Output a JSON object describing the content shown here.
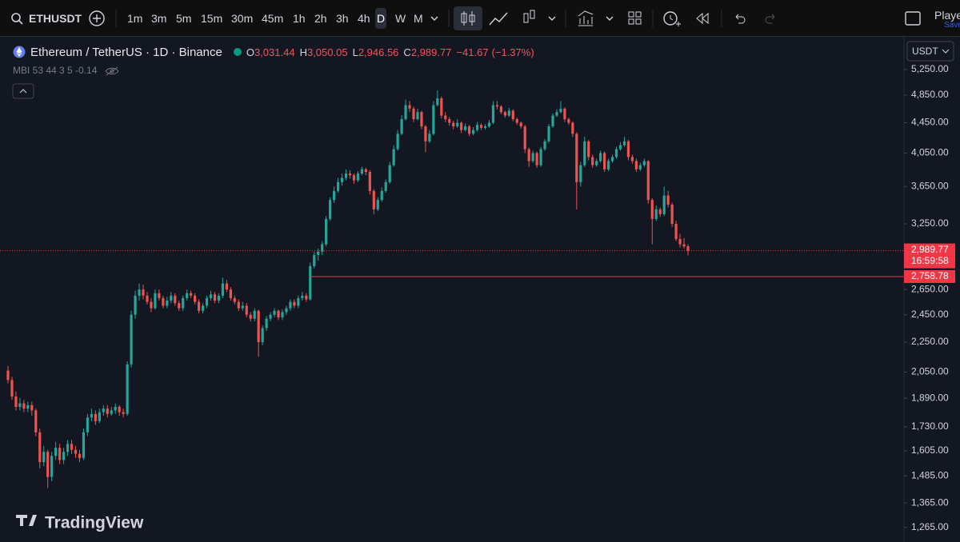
{
  "toolbar": {
    "symbol": "ETHUSDT",
    "intervals": [
      "1m",
      "3m",
      "5m",
      "15m",
      "30m",
      "45m",
      "1h",
      "2h",
      "3h",
      "4h",
      "D",
      "W",
      "M"
    ],
    "active_interval": "D",
    "account": "Playe",
    "save": "Save"
  },
  "watermark": "TradingView",
  "chart_data": {
    "type": "candlestick",
    "title": "Ethereum / TetherUS · 1D · Binance",
    "legend": [
      {
        "key": "O",
        "value": 3031.44,
        "label": "3,031.44"
      },
      {
        "key": "H",
        "value": 3050.05,
        "label": "3,050.05"
      },
      {
        "key": "L",
        "value": 2946.56,
        "label": "2,946.56"
      },
      {
        "key": "C",
        "value": 2989.77,
        "label": "2,989.77"
      }
    ],
    "change": {
      "value": -41.67,
      "label": "−41.67"
    },
    "change_percent": {
      "value": -1.37,
      "label": "(−1.37%)"
    },
    "indicator": "MBI 53 44 3 5 -0.14",
    "currency": "USDT",
    "log_scale": true,
    "ylim": [
      1209,
      5813
    ],
    "yticks": [
      {
        "value": 5250,
        "label": "5,250.00"
      },
      {
        "value": 4850,
        "label": "4,850.00"
      },
      {
        "value": 4450,
        "label": "4,450.00"
      },
      {
        "value": 4050,
        "label": "4,050.00"
      },
      {
        "value": 3650,
        "label": "3,650.00"
      },
      {
        "value": 3250,
        "label": "3,250.00"
      },
      {
        "value": 2650,
        "label": "2,650.00"
      },
      {
        "value": 2450,
        "label": "2,450.00"
      },
      {
        "value": 2250,
        "label": "2,250.00"
      },
      {
        "value": 2050,
        "label": "2,050.00"
      },
      {
        "value": 1890,
        "label": "1,890.00"
      },
      {
        "value": 1730,
        "label": "1,730.00"
      },
      {
        "value": 1605,
        "label": "1,605.00"
      },
      {
        "value": 1485,
        "label": "1,485.00"
      },
      {
        "value": 1365,
        "label": "1,365.00"
      },
      {
        "value": 1265,
        "label": "1,265.00"
      }
    ],
    "price_line": {
      "value": 2989.77,
      "label": "2,989.77",
      "countdown": "16:59:58"
    },
    "horizontal_line": {
      "value": 2758.78,
      "label": "2,758.78"
    },
    "up_color": "#26a69a",
    "down_color": "#ef5350",
    "candles": [
      [
        2060,
        2090,
        1980,
        2000
      ],
      [
        2000,
        2020,
        1880,
        1900
      ],
      [
        1900,
        1930,
        1820,
        1840
      ],
      [
        1840,
        1890,
        1820,
        1860
      ],
      [
        1860,
        1880,
        1810,
        1830
      ],
      [
        1830,
        1870,
        1810,
        1850
      ],
      [
        1850,
        1870,
        1790,
        1820
      ],
      [
        1820,
        1830,
        1680,
        1700
      ],
      [
        1700,
        1720,
        1520,
        1550
      ],
      [
        1550,
        1630,
        1530,
        1600
      ],
      [
        1600,
        1610,
        1430,
        1480
      ],
      [
        1480,
        1600,
        1460,
        1580
      ],
      [
        1580,
        1650,
        1560,
        1620
      ],
      [
        1620,
        1640,
        1540,
        1560
      ],
      [
        1560,
        1620,
        1540,
        1600
      ],
      [
        1600,
        1660,
        1580,
        1640
      ],
      [
        1640,
        1660,
        1590,
        1610
      ],
      [
        1610,
        1630,
        1570,
        1590
      ],
      [
        1590,
        1610,
        1550,
        1570
      ],
      [
        1570,
        1720,
        1560,
        1700
      ],
      [
        1700,
        1800,
        1680,
        1780
      ],
      [
        1780,
        1830,
        1760,
        1800
      ],
      [
        1800,
        1820,
        1740,
        1760
      ],
      [
        1760,
        1830,
        1750,
        1810
      ],
      [
        1810,
        1850,
        1790,
        1830
      ],
      [
        1830,
        1850,
        1780,
        1800
      ],
      [
        1800,
        1840,
        1790,
        1820
      ],
      [
        1820,
        1860,
        1800,
        1840
      ],
      [
        1840,
        1850,
        1790,
        1810
      ],
      [
        1810,
        1830,
        1780,
        1800
      ],
      [
        1800,
        2120,
        1790,
        2100
      ],
      [
        2100,
        2480,
        2080,
        2450
      ],
      [
        2450,
        2640,
        2420,
        2600
      ],
      [
        2600,
        2700,
        2560,
        2650
      ],
      [
        2650,
        2690,
        2570,
        2600
      ],
      [
        2600,
        2630,
        2530,
        2550
      ],
      [
        2550,
        2580,
        2470,
        2500
      ],
      [
        2500,
        2650,
        2490,
        2620
      ],
      [
        2620,
        2650,
        2560,
        2580
      ],
      [
        2580,
        2600,
        2500,
        2520
      ],
      [
        2520,
        2590,
        2500,
        2560
      ],
      [
        2560,
        2630,
        2540,
        2600
      ],
      [
        2600,
        2620,
        2520,
        2540
      ],
      [
        2540,
        2560,
        2480,
        2500
      ],
      [
        2500,
        2600,
        2480,
        2580
      ],
      [
        2580,
        2650,
        2560,
        2620
      ],
      [
        2620,
        2640,
        2580,
        2600
      ],
      [
        2600,
        2620,
        2530,
        2550
      ],
      [
        2550,
        2570,
        2460,
        2480
      ],
      [
        2480,
        2540,
        2460,
        2520
      ],
      [
        2520,
        2600,
        2500,
        2580
      ],
      [
        2580,
        2640,
        2560,
        2610
      ],
      [
        2610,
        2630,
        2540,
        2560
      ],
      [
        2560,
        2620,
        2540,
        2600
      ],
      [
        2600,
        2750,
        2580,
        2700
      ],
      [
        2700,
        2730,
        2630,
        2650
      ],
      [
        2650,
        2670,
        2560,
        2580
      ],
      [
        2580,
        2600,
        2530,
        2550
      ],
      [
        2550,
        2570,
        2480,
        2500
      ],
      [
        2500,
        2550,
        2480,
        2520
      ],
      [
        2520,
        2540,
        2430,
        2450
      ],
      [
        2450,
        2470,
        2400,
        2420
      ],
      [
        2420,
        2500,
        2400,
        2480
      ],
      [
        2480,
        2490,
        2150,
        2250
      ],
      [
        2250,
        2370,
        2230,
        2350
      ],
      [
        2350,
        2440,
        2330,
        2420
      ],
      [
        2420,
        2470,
        2400,
        2450
      ],
      [
        2450,
        2500,
        2430,
        2480
      ],
      [
        2480,
        2490,
        2410,
        2430
      ],
      [
        2430,
        2490,
        2410,
        2470
      ],
      [
        2470,
        2520,
        2450,
        2500
      ],
      [
        2500,
        2570,
        2480,
        2550
      ],
      [
        2550,
        2570,
        2500,
        2520
      ],
      [
        2520,
        2600,
        2500,
        2580
      ],
      [
        2580,
        2630,
        2560,
        2600
      ],
      [
        2600,
        2620,
        2550,
        2570
      ],
      [
        2570,
        2880,
        2560,
        2850
      ],
      [
        2850,
        2980,
        2830,
        2950
      ],
      [
        2950,
        3010,
        2900,
        2980
      ],
      [
        2980,
        3080,
        2950,
        3050
      ],
      [
        3050,
        3330,
        3030,
        3300
      ],
      [
        3300,
        3530,
        3280,
        3500
      ],
      [
        3500,
        3650,
        3470,
        3600
      ],
      [
        3600,
        3750,
        3580,
        3700
      ],
      [
        3700,
        3800,
        3660,
        3750
      ],
      [
        3750,
        3850,
        3720,
        3800
      ],
      [
        3800,
        3840,
        3740,
        3780
      ],
      [
        3780,
        3800,
        3680,
        3720
      ],
      [
        3720,
        3830,
        3700,
        3800
      ],
      [
        3800,
        3880,
        3780,
        3850
      ],
      [
        3850,
        3870,
        3780,
        3820
      ],
      [
        3820,
        3840,
        3560,
        3600
      ],
      [
        3600,
        3620,
        3350,
        3400
      ],
      [
        3400,
        3530,
        3380,
        3500
      ],
      [
        3500,
        3640,
        3480,
        3600
      ],
      [
        3600,
        3730,
        3580,
        3700
      ],
      [
        3700,
        3940,
        3680,
        3900
      ],
      [
        3900,
        4150,
        3880,
        4100
      ],
      [
        4100,
        4350,
        4080,
        4300
      ],
      [
        4300,
        4560,
        4280,
        4500
      ],
      [
        4500,
        4780,
        4480,
        4700
      ],
      [
        4700,
        4760,
        4600,
        4650
      ],
      [
        4650,
        4680,
        4460,
        4500
      ],
      [
        4500,
        4650,
        4480,
        4600
      ],
      [
        4600,
        4620,
        4360,
        4400
      ],
      [
        4400,
        4420,
        4060,
        4200
      ],
      [
        4200,
        4350,
        4180,
        4300
      ],
      [
        4300,
        4760,
        4280,
        4700
      ],
      [
        4700,
        4920,
        4680,
        4800
      ],
      [
        4800,
        4830,
        4510,
        4550
      ],
      [
        4550,
        4600,
        4460,
        4500
      ],
      [
        4500,
        4530,
        4410,
        4450
      ],
      [
        4450,
        4480,
        4360,
        4400
      ],
      [
        4400,
        4500,
        4380,
        4450
      ],
      [
        4450,
        4470,
        4310,
        4350
      ],
      [
        4350,
        4440,
        4330,
        4400
      ],
      [
        4400,
        4420,
        4270,
        4300
      ],
      [
        4300,
        4390,
        4280,
        4350
      ],
      [
        4350,
        4460,
        4330,
        4420
      ],
      [
        4420,
        4440,
        4350,
        4380
      ],
      [
        4380,
        4430,
        4360,
        4400
      ],
      [
        4400,
        4490,
        4380,
        4450
      ],
      [
        4450,
        4760,
        4430,
        4700
      ],
      [
        4700,
        4760,
        4640,
        4680
      ],
      [
        4680,
        4700,
        4570,
        4600
      ],
      [
        4600,
        4620,
        4520,
        4550
      ],
      [
        4550,
        4660,
        4530,
        4620
      ],
      [
        4620,
        4640,
        4470,
        4500
      ],
      [
        4500,
        4520,
        4420,
        4450
      ],
      [
        4450,
        4470,
        4370,
        4400
      ],
      [
        4400,
        4420,
        4050,
        4100
      ],
      [
        4100,
        4120,
        3880,
        3950
      ],
      [
        3950,
        4080,
        3930,
        4050
      ],
      [
        4050,
        4070,
        3870,
        3900
      ],
      [
        3900,
        4130,
        3880,
        4100
      ],
      [
        4100,
        4230,
        4080,
        4200
      ],
      [
        4200,
        4430,
        4180,
        4400
      ],
      [
        4400,
        4580,
        4380,
        4550
      ],
      [
        4550,
        4640,
        4530,
        4600
      ],
      [
        4600,
        4760,
        4580,
        4650
      ],
      [
        4650,
        4670,
        4460,
        4500
      ],
      [
        4500,
        4520,
        4420,
        4450
      ],
      [
        4450,
        4470,
        4260,
        4300
      ],
      [
        4300,
        4320,
        3400,
        3700
      ],
      [
        3700,
        3940,
        3650,
        3900
      ],
      [
        3900,
        4260,
        3880,
        4200
      ],
      [
        4200,
        4220,
        3960,
        4000
      ],
      [
        4000,
        4030,
        3870,
        3900
      ],
      [
        3900,
        3980,
        3880,
        3950
      ],
      [
        3950,
        4080,
        3930,
        4050
      ],
      [
        4050,
        4070,
        3820,
        3850
      ],
      [
        3850,
        3980,
        3830,
        3950
      ],
      [
        3950,
        4030,
        3930,
        4000
      ],
      [
        4000,
        4130,
        3980,
        4100
      ],
      [
        4100,
        4190,
        4080,
        4150
      ],
      [
        4150,
        4260,
        4130,
        4200
      ],
      [
        4200,
        4220,
        3960,
        4000
      ],
      [
        4000,
        4030,
        3920,
        3950
      ],
      [
        3950,
        3980,
        3820,
        3850
      ],
      [
        3850,
        3930,
        3830,
        3900
      ],
      [
        3900,
        3980,
        3880,
        3950
      ],
      [
        3950,
        3960,
        3460,
        3500
      ],
      [
        3500,
        3520,
        3050,
        3300
      ],
      [
        3300,
        3440,
        3280,
        3400
      ],
      [
        3400,
        3420,
        3320,
        3350
      ],
      [
        3350,
        3650,
        3330,
        3550
      ],
      [
        3550,
        3600,
        3420,
        3450
      ],
      [
        3450,
        3470,
        3220,
        3250
      ],
      [
        3250,
        3280,
        3080,
        3100
      ],
      [
        3100,
        3150,
        3020,
        3050
      ],
      [
        3050,
        3110,
        3010,
        3030
      ],
      [
        3031.44,
        3050.05,
        2946.56,
        2989.77
      ]
    ]
  }
}
